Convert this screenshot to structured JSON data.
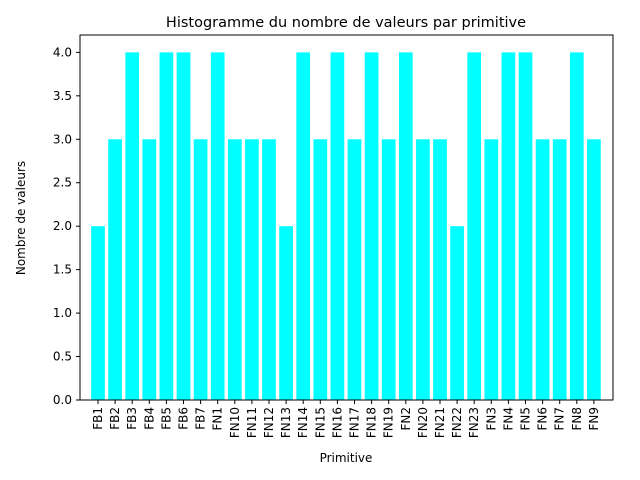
{
  "chart_data": {
    "type": "bar",
    "title": "Histogramme du nombre de valeurs par primitive",
    "xlabel": "Primitive",
    "ylabel": "Nombre de valeurs",
    "categories": [
      "FB1",
      "FB2",
      "FB3",
      "FB4",
      "FB5",
      "FB6",
      "FB7",
      "FN1",
      "FN10",
      "FN11",
      "FN12",
      "FN13",
      "FN14",
      "FN15",
      "FN16",
      "FN17",
      "FN18",
      "FN19",
      "FN2",
      "FN20",
      "FN21",
      "FN22",
      "FN23",
      "FN3",
      "FN4",
      "FN5",
      "FN6",
      "FN7",
      "FN8",
      "FN9"
    ],
    "values": [
      2,
      3,
      4,
      3,
      4,
      4,
      3,
      4,
      3,
      3,
      3,
      2,
      4,
      3,
      4,
      3,
      4,
      3,
      4,
      3,
      3,
      2,
      4,
      3,
      4,
      4,
      3,
      3,
      4,
      3
    ],
    "ylim": [
      0,
      4.2
    ],
    "yticks": [
      "0.0",
      "0.5",
      "1.0",
      "1.5",
      "2.0",
      "2.5",
      "3.0",
      "3.5",
      "4.0"
    ],
    "grid": false,
    "bar_color": "#00ffff"
  }
}
